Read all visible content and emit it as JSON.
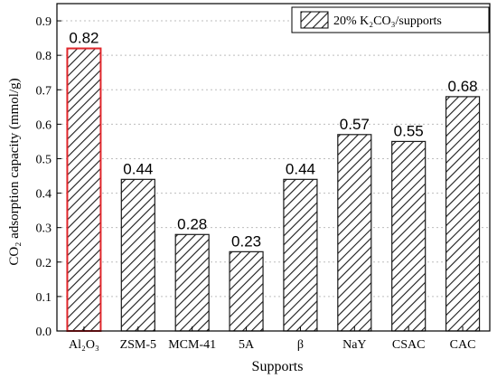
{
  "chart_data": {
    "type": "bar",
    "categories": [
      "Al₂O₃",
      "ZSM-5",
      "MCM-41",
      "5A",
      "β",
      "NaY",
      "CSAC",
      "CAC"
    ],
    "values": [
      0.82,
      0.44,
      0.28,
      0.23,
      0.44,
      0.57,
      0.55,
      0.68
    ],
    "data_labels": [
      "0.82",
      "0.44",
      "0.28",
      "0.23",
      "0.44",
      "0.57",
      "0.55",
      "0.68"
    ],
    "highlight_index": 0,
    "highlight_color": "#e0262b",
    "bar_color": "#1a1a1a",
    "fill_pattern": "diagonal-hatch",
    "xlabel": "Supports",
    "ylabel": "CO₂ adsorption capacity (mmol/g)",
    "ylim": [
      0.0,
      0.95
    ],
    "yticks": [
      0.0,
      0.1,
      0.2,
      0.3,
      0.4,
      0.5,
      0.6,
      0.7,
      0.8,
      0.9
    ],
    "ytick_labels": [
      "0.0",
      "0.1",
      "0.2",
      "0.3",
      "0.4",
      "0.5",
      "0.6",
      "0.7",
      "0.8",
      "0.9"
    ],
    "grid": "dotted horizontal",
    "legend": {
      "position": "top-right",
      "entries": [
        "20% K₂CO₃/supports"
      ]
    }
  }
}
